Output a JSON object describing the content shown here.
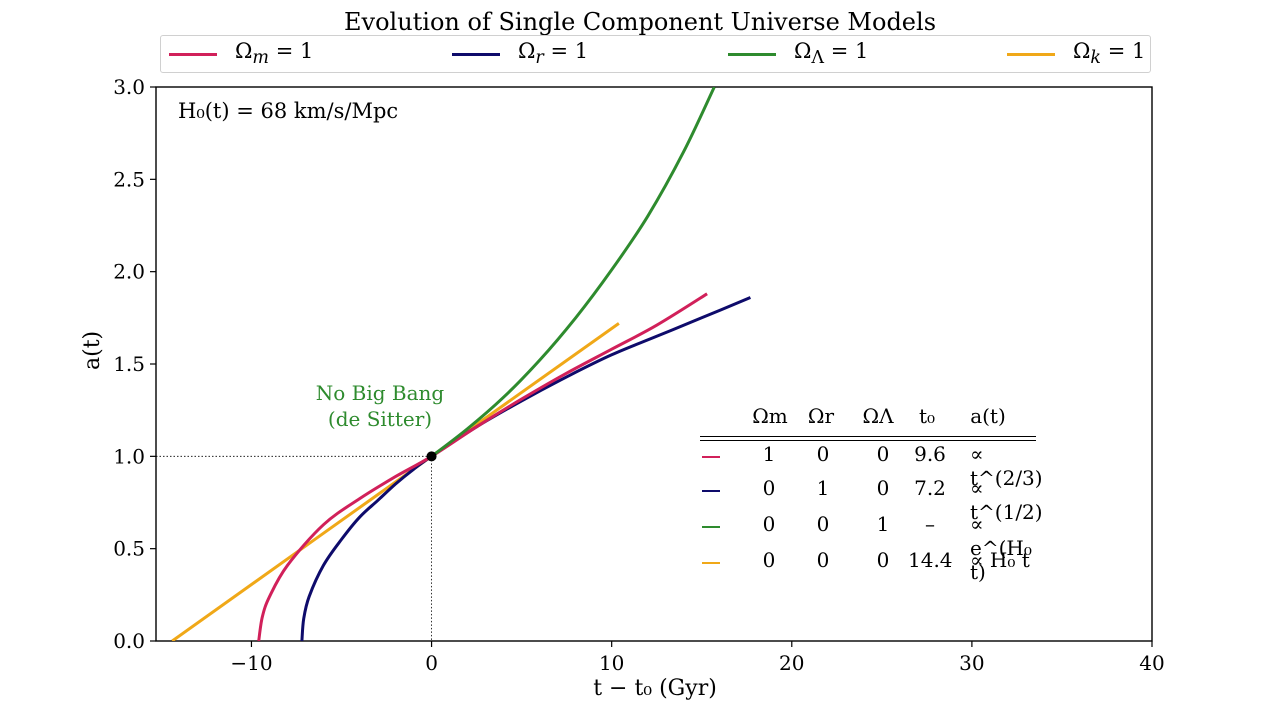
{
  "chart_data": {
    "type": "line",
    "title": "Evolution of Single Component Universe Models",
    "xlabel": "t − t₀ (Gyr)",
    "ylabel": "a(t)",
    "xlim": [
      -15.3,
      40
    ],
    "ylim": [
      0,
      3.0
    ],
    "xticks": [
      -10,
      0,
      10,
      20,
      30,
      40
    ],
    "xtick_labels": [
      "−10",
      "0",
      "10",
      "20",
      "30",
      "40"
    ],
    "yticks": [
      0.0,
      0.5,
      1.0,
      1.5,
      2.0,
      2.5,
      3.0
    ],
    "ytick_labels": [
      "0.0",
      "0.5",
      "1.0",
      "1.5",
      "2.0",
      "2.5",
      "3.0"
    ],
    "grid": false,
    "legend_placement": "top",
    "series": [
      {
        "name": "Ω_m = 1",
        "color": "#d1205a",
        "x": [
          -9.6,
          -9.4,
          -9.0,
          -8.0,
          -6.0,
          -4.0,
          -2.0,
          0,
          2.5,
          5,
          7.5,
          10,
          12.5,
          15.3
        ],
        "y": [
          0.0,
          0.13,
          0.24,
          0.41,
          0.63,
          0.77,
          0.89,
          1.0,
          1.16,
          1.31,
          1.45,
          1.58,
          1.71,
          1.88
        ]
      },
      {
        "name": "Ω_r = 1",
        "color": "#0e0b6b",
        "x": [
          -7.2,
          -7.1,
          -6.8,
          -6.0,
          -5.0,
          -4.0,
          -3.0,
          -2.0,
          -1.0,
          0,
          2.5,
          5,
          7.5,
          10,
          12.5,
          15,
          17.7
        ],
        "y": [
          0.0,
          0.12,
          0.24,
          0.41,
          0.55,
          0.67,
          0.76,
          0.85,
          0.93,
          1.0,
          1.16,
          1.3,
          1.43,
          1.55,
          1.65,
          1.75,
          1.86
        ]
      },
      {
        "name": "Ω_Λ = 1",
        "color": "#2e8b2e",
        "x": [
          0,
          2,
          4,
          6,
          8,
          10,
          12,
          14,
          15.7
        ],
        "y": [
          1.0,
          1.15,
          1.32,
          1.52,
          1.75,
          2.01,
          2.3,
          2.65,
          3.0
        ]
      },
      {
        "name": "Ω_k = 1",
        "color": "#f0a818",
        "x": [
          -14.4,
          0,
          10.4
        ],
        "y": [
          0.0,
          1.0,
          1.72
        ]
      }
    ],
    "marker_point": {
      "x": 0,
      "y": 1.0
    },
    "reference_lines": {
      "x": 0,
      "y": 1.0
    }
  },
  "legend": [
    {
      "sym": "Ω",
      "sub": "m",
      "eq": " = 1",
      "color": "#d1205a"
    },
    {
      "sym": "Ω",
      "sub": "r",
      "eq": " = 1",
      "color": "#0e0b6b"
    },
    {
      "sym": "Ω",
      "sub": "Λ",
      "eq": " = 1",
      "color": "#2e8b2e"
    },
    {
      "sym": "Ω",
      "sub": "k",
      "eq": " = 1",
      "color": "#f0a818"
    }
  ],
  "annotations": {
    "hubble": "H₀(t) = 68 km/s/Mpc",
    "no_big_bang_line1": "No Big Bang",
    "no_big_bang_line2": "(de Sitter)"
  },
  "table": {
    "headers": [
      "Ωm",
      "Ωr",
      "ΩΛ",
      "t₀",
      "a(t)"
    ],
    "rows": [
      {
        "color": "#d1205a",
        "om": "1",
        "or": "0",
        "ol": "0",
        "t0": "9.6",
        "at": "∝ t^(2/3)"
      },
      {
        "color": "#0e0b6b",
        "om": "0",
        "or": "1",
        "ol": "0",
        "t0": "7.2",
        "at": "∝ t^(1/2)"
      },
      {
        "color": "#2e8b2e",
        "om": "0",
        "or": "0",
        "ol": "1",
        "t0": "–",
        "at": "∝ e^(H₀ t)"
      },
      {
        "color": "#f0a818",
        "om": "0",
        "or": "0",
        "ol": "0",
        "t0": "14.4",
        "at": "∝ H₀ t"
      }
    ]
  }
}
